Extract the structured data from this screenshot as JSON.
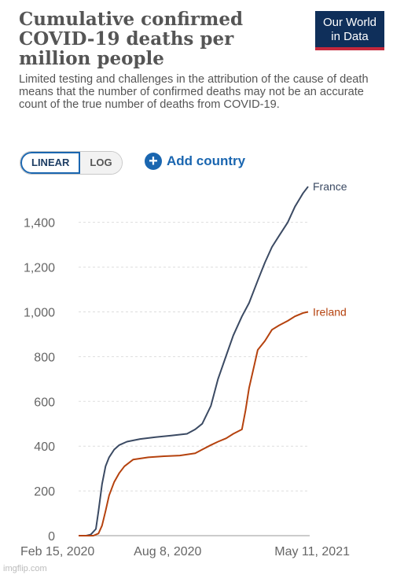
{
  "header": {
    "title": "Cumulative confirmed COVID-19 deaths per million people",
    "subtitle": "Limited testing and challenges in the attribution of the cause of death means that the number of confirmed deaths may not be an accurate count of the true number of deaths from COVID-19.",
    "logo_line1": "Our World",
    "logo_line2": "in Data"
  },
  "controls": {
    "scale_options": [
      "LINEAR",
      "LOG"
    ],
    "selected_scale": "LINEAR",
    "add_country_label": "Add country"
  },
  "colors": {
    "france": "#3b4a63",
    "ireland": "#b5420e",
    "grid": "#dddddd",
    "accent": "#1a66b0"
  },
  "watermark": "imgflip.com",
  "chart_data": {
    "type": "line",
    "title": "Cumulative confirmed COVID-19 deaths per million people",
    "xlabel": "",
    "ylabel": "",
    "x_tick_labels": [
      "Feb 15, 2020",
      "Aug 8, 2020",
      "May 11, 2021"
    ],
    "y_ticks": [
      0,
      200,
      400,
      600,
      800,
      1000,
      1200,
      1400
    ],
    "y_tick_labels": [
      "0",
      "200",
      "400",
      "600",
      "800",
      "1,000",
      "1,200",
      "1,400"
    ],
    "ylim": [
      0,
      1550
    ],
    "xlim": [
      "2020-02-15",
      "2021-05-11"
    ],
    "grid": "horizontal dashed",
    "series": [
      {
        "name": "France",
        "x": [
          "2020-02-15",
          "2020-03-01",
          "2020-03-10",
          "2020-03-20",
          "2020-03-25",
          "2020-04-01",
          "2020-04-08",
          "2020-04-15",
          "2020-04-25",
          "2020-05-05",
          "2020-05-20",
          "2020-06-15",
          "2020-07-15",
          "2020-08-15",
          "2020-09-15",
          "2020-10-01",
          "2020-10-15",
          "2020-11-01",
          "2020-11-15",
          "2020-12-01",
          "2020-12-15",
          "2021-01-01",
          "2021-01-15",
          "2021-02-01",
          "2021-02-15",
          "2021-03-01",
          "2021-03-15",
          "2021-04-01",
          "2021-04-15",
          "2021-05-01",
          "2021-05-11"
        ],
        "y": [
          0,
          0,
          5,
          30,
          110,
          230,
          310,
          350,
          385,
          405,
          420,
          432,
          440,
          447,
          455,
          475,
          500,
          580,
          700,
          805,
          895,
          980,
          1040,
          1140,
          1220,
          1290,
          1340,
          1400,
          1470,
          1530,
          1560
        ]
      },
      {
        "name": "Ireland",
        "x": [
          "2020-02-15",
          "2020-03-15",
          "2020-03-25",
          "2020-04-01",
          "2020-04-08",
          "2020-04-15",
          "2020-04-25",
          "2020-05-05",
          "2020-05-15",
          "2020-06-01",
          "2020-07-01",
          "2020-08-01",
          "2020-09-01",
          "2020-10-01",
          "2020-10-15",
          "2020-11-01",
          "2020-11-15",
          "2020-12-01",
          "2020-12-15",
          "2021-01-01",
          "2021-01-08",
          "2021-01-15",
          "2021-01-25",
          "2021-02-01",
          "2021-02-15",
          "2021-03-01",
          "2021-03-15",
          "2021-04-01",
          "2021-04-15",
          "2021-05-01",
          "2021-05-11"
        ],
        "y": [
          0,
          0,
          10,
          45,
          110,
          180,
          240,
          280,
          310,
          340,
          350,
          355,
          358,
          368,
          385,
          405,
          420,
          435,
          455,
          475,
          560,
          660,
          760,
          830,
          870,
          920,
          940,
          960,
          980,
          995,
          1000
        ]
      }
    ]
  }
}
